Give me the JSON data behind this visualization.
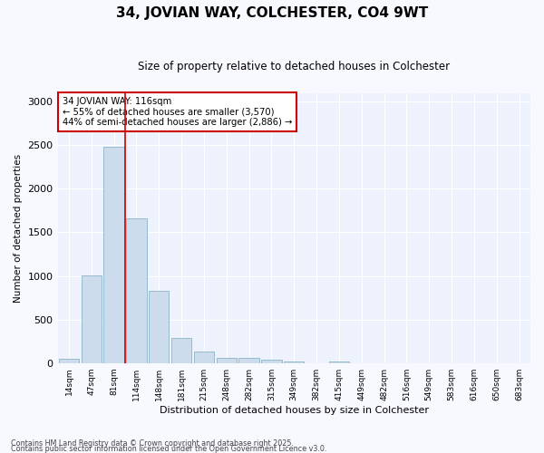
{
  "title1": "34, JOVIAN WAY, COLCHESTER, CO4 9WT",
  "title2": "Size of property relative to detached houses in Colchester",
  "xlabel": "Distribution of detached houses by size in Colchester",
  "ylabel": "Number of detached properties",
  "footer1": "Contains HM Land Registry data © Crown copyright and database right 2025.",
  "footer2": "Contains public sector information licensed under the Open Government Licence v3.0.",
  "property_label": "34 JOVIAN WAY: 116sqm",
  "annotation_line1": "← 55% of detached houses are smaller (3,570)",
  "annotation_line2": "44% of semi-detached houses are larger (2,886) →",
  "bar_color": "#ccdcec",
  "bar_edge_color": "#7aaabe",
  "vline_color": "#cc0000",
  "annotation_box_edge": "#cc0000",
  "fig_bg_color": "#f8f8ff",
  "axes_bg_color": "#eef2fc",
  "grid_color": "#ffffff",
  "categories": [
    "14sqm",
    "47sqm",
    "81sqm",
    "114sqm",
    "148sqm",
    "181sqm",
    "215sqm",
    "248sqm",
    "282sqm",
    "315sqm",
    "349sqm",
    "382sqm",
    "415sqm",
    "449sqm",
    "482sqm",
    "516sqm",
    "549sqm",
    "583sqm",
    "616sqm",
    "650sqm",
    "683sqm"
  ],
  "values": [
    50,
    1005,
    2480,
    1660,
    830,
    285,
    135,
    60,
    55,
    40,
    20,
    0,
    15,
    0,
    0,
    0,
    0,
    0,
    0,
    0,
    0
  ],
  "ylim": [
    0,
    3100
  ],
  "yticks": [
    0,
    500,
    1000,
    1500,
    2000,
    2500,
    3000
  ],
  "vline_x_index": 2.5
}
